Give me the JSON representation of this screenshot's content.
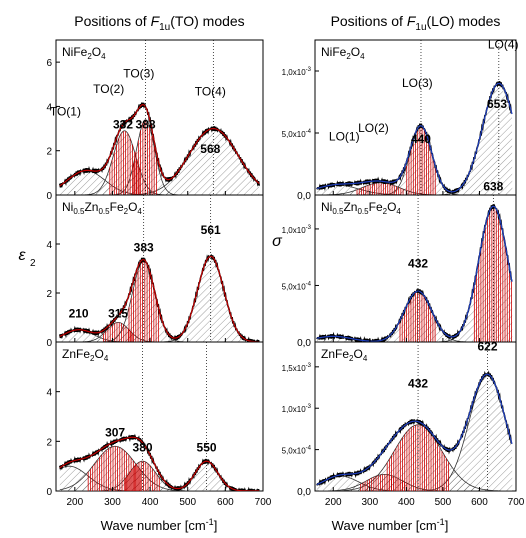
{
  "chart_data": [
    {
      "type": "line",
      "title_pre": "Positions of ",
      "title_sym": "F",
      "title_sub": "1u",
      "title_post": "(TO) modes",
      "ylabel": "ε",
      "ylabel_sub": "2",
      "xlim": [
        150,
        700
      ],
      "xticks": [
        "200",
        "300",
        "400",
        "500",
        "600",
        "700"
      ],
      "panels": [
        {
          "sample_parts": [
            [
              "NiFe",
              "n"
            ],
            [
              "2",
              "s"
            ],
            [
              "O",
              "n"
            ],
            [
              "4",
              "s"
            ]
          ],
          "ylim": [
            0,
            7
          ],
          "yticks": [
            "0",
            "2",
            "4",
            "6"
          ],
          "peaks": [
            {
              "x": 230,
              "h": 1.1,
              "w": 50
            },
            {
              "x": 332,
              "h": 2.9,
              "w": 30
            },
            {
              "x": 388,
              "h": 3.4,
              "w": 24
            },
            {
              "x": 568,
              "h": 3.0,
              "w": 65
            }
          ],
          "labels": [
            {
              "text": "TO(1)",
              "x": 175,
              "y": 3.6,
              "bold": false
            },
            {
              "text": "TO(2)",
              "x": 290,
              "y": 4.6,
              "bold": false
            },
            {
              "text": "TO(3)",
              "x": 370,
              "y": 5.3,
              "bold": false
            },
            {
              "text": "TO(4)",
              "x": 560,
              "y": 4.5,
              "bold": false
            },
            {
              "text": "332",
              "x": 328,
              "y": 3.0,
              "bold": true
            },
            {
              "text": "388",
              "x": 388,
              "y": 3.0,
              "bold": true
            },
            {
              "text": "568",
              "x": 560,
              "y": 1.9,
              "bold": true
            }
          ],
          "x_range": [
            160,
            690
          ]
        },
        {
          "sample_parts": [
            [
              "Ni",
              "n"
            ],
            [
              "0.5",
              "s"
            ],
            [
              "Zn",
              "n"
            ],
            [
              "0.5",
              "s"
            ],
            [
              "Fe",
              "n"
            ],
            [
              "2",
              "s"
            ],
            [
              "O",
              "n"
            ],
            [
              "4",
              "s"
            ]
          ],
          "ylim": [
            0,
            6
          ],
          "yticks": [
            "0",
            "2",
            "4"
          ],
          "peaks": [
            {
              "x": 210,
              "h": 0.5,
              "w": 40
            },
            {
              "x": 315,
              "h": 0.8,
              "w": 30
            },
            {
              "x": 383,
              "h": 3.3,
              "w": 30
            },
            {
              "x": 561,
              "h": 3.5,
              "w": 35
            }
          ],
          "labels": [
            {
              "text": "210",
              "x": 210,
              "y": 1.0,
              "bold": true
            },
            {
              "text": "315",
              "x": 315,
              "y": 1.0,
              "bold": true
            },
            {
              "text": "383",
              "x": 383,
              "y": 3.7,
              "bold": true
            },
            {
              "text": "561",
              "x": 561,
              "y": 4.4,
              "bold": true
            }
          ],
          "x_range": [
            160,
            690
          ]
        },
        {
          "sample_parts": [
            [
              "ZnFe",
              "n"
            ],
            [
              "2",
              "s"
            ],
            [
              "O",
              "n"
            ],
            [
              "4",
              "s"
            ]
          ],
          "ylim": [
            0,
            6
          ],
          "yticks": [
            "0",
            "2",
            "4"
          ],
          "peaks": [
            {
              "x": 185,
              "h": 1.0,
              "w": 50
            },
            {
              "x": 307,
              "h": 1.8,
              "w": 55
            },
            {
              "x": 380,
              "h": 1.2,
              "w": 35
            },
            {
              "x": 550,
              "h": 1.2,
              "w": 30
            }
          ],
          "labels": [
            {
              "text": "307",
              "x": 307,
              "y": 2.2,
              "bold": true
            },
            {
              "text": "380",
              "x": 380,
              "y": 1.6,
              "bold": true
            },
            {
              "text": "550",
              "x": 550,
              "y": 1.6,
              "bold": true
            }
          ],
          "x_range": [
            160,
            690
          ]
        }
      ]
    },
    {
      "type": "line",
      "title_pre": "Positions of ",
      "title_sym": "F",
      "title_sub": "1u",
      "title_post": "(LO) modes",
      "ylabel": "σ",
      "xlabel_pre": "Wave number [cm",
      "xlabel_sup": "-1",
      "xlabel_post": "]",
      "xlim": [
        150,
        700
      ],
      "xticks": [
        "200",
        "300",
        "400",
        "500",
        "600",
        "700"
      ],
      "panels": [
        {
          "sample_parts": [
            [
              "NiFe",
              "n"
            ],
            [
              "2",
              "s"
            ],
            [
              "O",
              "n"
            ],
            [
              "4",
              "s"
            ]
          ],
          "ylim": [
            0,
            0.00125
          ],
          "yticks": [
            "0,0",
            "5,0x10",
            "1,0x10"
          ],
          "ytick_sups": [
            "",
            "-4",
            "-3"
          ],
          "peaks": [
            {
              "x": 210,
              "h": 8e-05,
              "w": 60
            },
            {
              "x": 330,
              "h": 0.0001,
              "w": 50
            },
            {
              "x": 440,
              "h": 0.00055,
              "w": 30
            },
            {
              "x": 653,
              "h": 0.0009,
              "w": 45
            }
          ],
          "labels": [
            {
              "text": "LO(1)",
              "x": 230,
              "y": 0.00044,
              "bold": false
            },
            {
              "text": "LO(2)",
              "x": 310,
              "y": 0.00051,
              "bold": false
            },
            {
              "text": "LO(3)",
              "x": 430,
              "y": 0.00087,
              "bold": false
            },
            {
              "text": "LO(4)",
              "x": 665,
              "y": 0.00118,
              "bold": false
            },
            {
              "text": "440",
              "x": 440,
              "y": 0.00042,
              "bold": true
            },
            {
              "text": "653",
              "x": 648,
              "y": 0.0007,
              "bold": true
            }
          ],
          "x_range": [
            155,
            690
          ]
        },
        {
          "sample_parts": [
            [
              "Ni",
              "n"
            ],
            [
              "0.5",
              "s"
            ],
            [
              "Zn",
              "n"
            ],
            [
              "0.5",
              "s"
            ],
            [
              "Fe",
              "n"
            ],
            [
              "2",
              "s"
            ],
            [
              "O",
              "n"
            ],
            [
              "4",
              "s"
            ]
          ],
          "ylim": [
            0,
            0.0013
          ],
          "yticks": [
            "0,0",
            "5,0x10",
            "1,0x10"
          ],
          "ytick_sups": [
            "",
            "-4",
            "-3"
          ],
          "peaks": [
            {
              "x": 200,
              "h": 5e-05,
              "w": 50
            },
            {
              "x": 432,
              "h": 0.00045,
              "w": 38
            },
            {
              "x": 638,
              "h": 0.0012,
              "w": 40
            }
          ],
          "labels": [
            {
              "text": "432",
              "x": 432,
              "y": 0.00066,
              "bold": true
            },
            {
              "text": "638",
              "x": 638,
              "y": 0.00134,
              "bold": true
            }
          ],
          "x_range": [
            155,
            690
          ]
        },
        {
          "sample_parts": [
            [
              "ZnFe",
              "n"
            ],
            [
              "2",
              "s"
            ],
            [
              "O",
              "n"
            ],
            [
              "4",
              "s"
            ]
          ],
          "ylim": [
            0,
            0.0018
          ],
          "yticks": [
            "0,0",
            "5,0x10",
            "1,0x10",
            "1,5x10"
          ],
          "ytick_sups": [
            "",
            "-4",
            "-3",
            "-3"
          ],
          "peaks": [
            {
              "x": 220,
              "h": 0.00018,
              "w": 50
            },
            {
              "x": 340,
              "h": 0.0002,
              "w": 50
            },
            {
              "x": 432,
              "h": 0.0008,
              "w": 65
            },
            {
              "x": 622,
              "h": 0.0014,
              "w": 50
            }
          ],
          "labels": [
            {
              "text": "432",
              "x": 432,
              "y": 0.00125,
              "bold": true
            },
            {
              "text": "622",
              "x": 622,
              "y": 0.0017,
              "bold": true
            }
          ],
          "x_range": [
            155,
            690
          ]
        }
      ]
    }
  ]
}
